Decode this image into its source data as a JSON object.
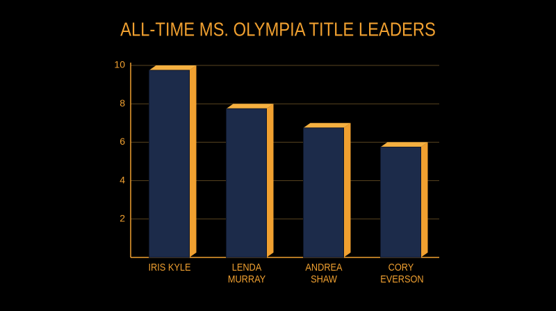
{
  "chart_data": {
    "type": "bar3d",
    "title": "ALL-TIME MS. OLYMPIA TITLE LEADERS",
    "categories": [
      "IRIS KYLE",
      "LENDA MURRAY",
      "ANDREA SHAW",
      "CORY EVERSON"
    ],
    "values": [
      10,
      8,
      7,
      6
    ],
    "color": "#1c2b4a",
    "side_color": "#f0a030",
    "ylim": [
      0,
      10
    ],
    "yticks": [
      2,
      4,
      6,
      8,
      10
    ],
    "grid": true
  }
}
